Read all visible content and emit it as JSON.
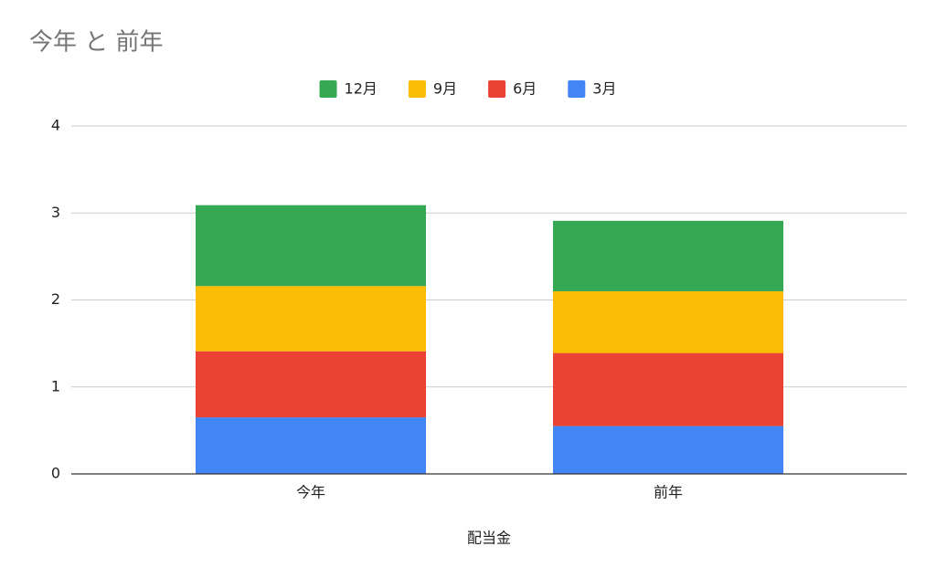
{
  "chart_data": {
    "type": "stacked_bar",
    "title": "今年 と 前年",
    "x_label": "配当金",
    "categories": [
      "今年",
      "前年"
    ],
    "series": [
      {
        "name": "12月",
        "color": "#34a853",
        "values": [
          0.93,
          0.81
        ]
      },
      {
        "name": "9月",
        "color": "#fbbc04",
        "values": [
          0.75,
          0.71
        ]
      },
      {
        "name": "6月",
        "color": "#ea4335",
        "values": [
          0.76,
          0.84
        ]
      },
      {
        "name": "3月",
        "color": "#4285f4",
        "values": [
          0.65,
          0.55
        ]
      }
    ],
    "ylim": [
      0,
      4
    ],
    "yticks": [
      0,
      1,
      2,
      3,
      4
    ],
    "grid": true,
    "legend": "top"
  }
}
